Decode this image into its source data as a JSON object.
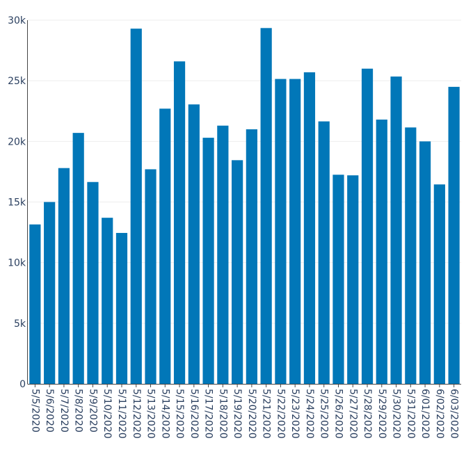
{
  "chart_data": {
    "type": "bar",
    "title": "",
    "xlabel": "",
    "ylabel": "",
    "bar_color": "#0177b8",
    "grid": true,
    "legend": "none",
    "ylim": [
      0,
      30000
    ],
    "y_ticks": [
      0,
      5000,
      10000,
      15000,
      20000,
      25000,
      30000
    ],
    "y_tick_labels": [
      "0",
      "5k",
      "10k",
      "15k",
      "20k",
      "25k",
      "30k"
    ],
    "categories": [
      "5/5/2020",
      "5/6/2020",
      "5/7/2020",
      "5/8/2020",
      "5/9/2020",
      "5/10/2020",
      "5/11/2020",
      "5/12/2020",
      "5/13/2020",
      "5/14/2020",
      "5/15/2020",
      "5/16/2020",
      "5/17/2020",
      "5/18/2020",
      "5/19/2020",
      "5/20/2020",
      "5/21/2020",
      "5/22/2020",
      "5/23/2020",
      "5/24/2020",
      "5/25/2020",
      "5/26/2020",
      "5/27/2020",
      "5/28/2020",
      "5/29/2020",
      "5/30/2020",
      "5/31/2020",
      "6/01/2020",
      "6/02/2020",
      "6/03/2020"
    ],
    "values": [
      13150,
      15000,
      17800,
      20700,
      16650,
      13700,
      12450,
      29300,
      17700,
      22700,
      26600,
      23050,
      20300,
      21300,
      18450,
      21000,
      29350,
      25150,
      25150,
      25700,
      21650,
      17250,
      17200,
      26000,
      21800,
      25350,
      21150,
      20000,
      16450,
      24500
    ]
  }
}
